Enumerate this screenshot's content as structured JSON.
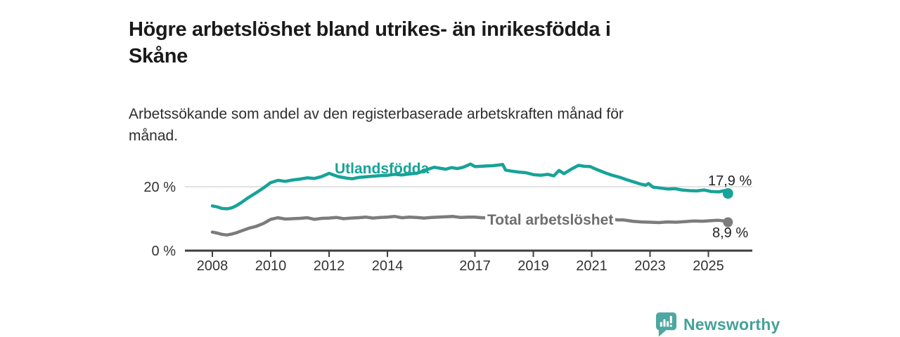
{
  "header": {
    "title": "Högre arbetslöshet bland utrikes- än inrikesfödda i\nSkåne",
    "subtitle": "Arbetssökande som andel av den registerbaserade arbetskraften månad för\nmånad."
  },
  "chart_data": {
    "type": "line",
    "title": "Högre arbetslöshet bland utrikes- än inrikesfödda i Skåne",
    "subtitle": "Arbetssökande som andel av den registerbaserade arbetskraften månad för månad.",
    "unit": "%",
    "x_axis": {
      "ticks": [
        2008,
        2010,
        2012,
        2014,
        2017,
        2019,
        2021,
        2023,
        2025
      ],
      "range_years": [
        2007.1,
        2026.5
      ]
    },
    "y_axis": {
      "ticks": [
        {
          "value": 0,
          "label": "0 %"
        },
        {
          "value": 20,
          "label": "20 %"
        }
      ],
      "range": [
        0,
        29
      ],
      "grid": true
    },
    "colors": {
      "axis": "#3e3e3e",
      "grid": "#d9d9d9",
      "tick_text": "#333333",
      "value_text": "#222222"
    },
    "series": [
      {
        "name": "Utlandsfödda",
        "color": "#17a398",
        "end_label": "17,9 %",
        "end_value": 17.9,
        "points": [
          [
            2008.0,
            14.0
          ],
          [
            2008.17,
            13.7
          ],
          [
            2008.33,
            13.2
          ],
          [
            2008.5,
            13.1
          ],
          [
            2008.67,
            13.4
          ],
          [
            2008.83,
            14.1
          ],
          [
            2009.0,
            15.1
          ],
          [
            2009.25,
            16.7
          ],
          [
            2009.5,
            18.1
          ],
          [
            2009.75,
            19.6
          ],
          [
            2010.0,
            21.3
          ],
          [
            2010.25,
            22.0
          ],
          [
            2010.5,
            21.7
          ],
          [
            2010.75,
            22.1
          ],
          [
            2011.0,
            22.4
          ],
          [
            2011.25,
            22.8
          ],
          [
            2011.5,
            22.6
          ],
          [
            2011.75,
            23.2
          ],
          [
            2012.0,
            24.2
          ],
          [
            2012.3,
            23.2
          ],
          [
            2012.6,
            22.7
          ],
          [
            2012.8,
            22.5
          ],
          [
            2013.0,
            22.9
          ],
          [
            2013.25,
            23.1
          ],
          [
            2013.5,
            23.3
          ],
          [
            2013.75,
            23.5
          ],
          [
            2014.0,
            23.6
          ],
          [
            2014.25,
            23.9
          ],
          [
            2014.5,
            23.7
          ],
          [
            2014.75,
            24.0
          ],
          [
            2015.0,
            24.2
          ],
          [
            2015.2,
            24.8
          ],
          [
            2015.4,
            25.5
          ],
          [
            2015.6,
            26.1
          ],
          [
            2015.8,
            25.8
          ],
          [
            2016.0,
            25.5
          ],
          [
            2016.2,
            26.0
          ],
          [
            2016.4,
            25.7
          ],
          [
            2016.6,
            26.1
          ],
          [
            2016.85,
            27.1
          ],
          [
            2017.0,
            26.3
          ],
          [
            2017.2,
            26.4
          ],
          [
            2017.4,
            26.5
          ],
          [
            2017.6,
            26.6
          ],
          [
            2017.8,
            26.8
          ],
          [
            2017.95,
            27.0
          ],
          [
            2018.05,
            25.2
          ],
          [
            2018.25,
            24.9
          ],
          [
            2018.5,
            24.6
          ],
          [
            2018.75,
            24.4
          ],
          [
            2019.0,
            23.8
          ],
          [
            2019.25,
            23.6
          ],
          [
            2019.5,
            23.9
          ],
          [
            2019.7,
            23.4
          ],
          [
            2019.88,
            25.1
          ],
          [
            2020.05,
            24.1
          ],
          [
            2020.3,
            25.5
          ],
          [
            2020.55,
            26.7
          ],
          [
            2020.75,
            26.4
          ],
          [
            2020.95,
            26.3
          ],
          [
            2021.2,
            25.3
          ],
          [
            2021.45,
            24.4
          ],
          [
            2021.7,
            23.6
          ],
          [
            2021.95,
            23.0
          ],
          [
            2022.2,
            22.2
          ],
          [
            2022.45,
            21.5
          ],
          [
            2022.65,
            20.9
          ],
          [
            2022.85,
            20.5
          ],
          [
            2022.95,
            21.0
          ],
          [
            2023.1,
            19.9
          ],
          [
            2023.35,
            19.6
          ],
          [
            2023.6,
            19.3
          ],
          [
            2023.85,
            19.4
          ],
          [
            2024.1,
            19.0
          ],
          [
            2024.35,
            18.8
          ],
          [
            2024.6,
            18.7
          ],
          [
            2024.85,
            19.0
          ],
          [
            2025.1,
            18.5
          ],
          [
            2025.35,
            18.4
          ],
          [
            2025.55,
            18.8
          ],
          [
            2025.67,
            17.9
          ]
        ]
      },
      {
        "name": "Total arbetslöshet",
        "color": "#7c7c7f",
        "label_color": "#6e6e71",
        "end_label": "8,9 %",
        "end_value": 8.9,
        "points": [
          [
            2008.0,
            5.8
          ],
          [
            2008.17,
            5.5
          ],
          [
            2008.33,
            5.1
          ],
          [
            2008.5,
            4.9
          ],
          [
            2008.67,
            5.2
          ],
          [
            2008.83,
            5.6
          ],
          [
            2009.0,
            6.2
          ],
          [
            2009.25,
            7.0
          ],
          [
            2009.5,
            7.6
          ],
          [
            2009.75,
            8.5
          ],
          [
            2010.0,
            9.8
          ],
          [
            2010.25,
            10.3
          ],
          [
            2010.5,
            9.9
          ],
          [
            2010.75,
            10.0
          ],
          [
            2011.0,
            10.1
          ],
          [
            2011.25,
            10.3
          ],
          [
            2011.5,
            9.8
          ],
          [
            2011.75,
            10.1
          ],
          [
            2012.0,
            10.2
          ],
          [
            2012.25,
            10.4
          ],
          [
            2012.5,
            10.0
          ],
          [
            2012.75,
            10.2
          ],
          [
            2013.0,
            10.3
          ],
          [
            2013.25,
            10.5
          ],
          [
            2013.5,
            10.2
          ],
          [
            2013.75,
            10.4
          ],
          [
            2014.0,
            10.5
          ],
          [
            2014.25,
            10.7
          ],
          [
            2014.5,
            10.3
          ],
          [
            2014.75,
            10.5
          ],
          [
            2015.0,
            10.4
          ],
          [
            2015.25,
            10.2
          ],
          [
            2015.5,
            10.4
          ],
          [
            2015.75,
            10.5
          ],
          [
            2016.0,
            10.6
          ],
          [
            2016.25,
            10.7
          ],
          [
            2016.5,
            10.4
          ],
          [
            2016.75,
            10.5
          ],
          [
            2017.0,
            10.5
          ],
          [
            2017.25,
            10.3
          ],
          [
            2017.5,
            10.2
          ],
          [
            2017.75,
            10.1
          ],
          [
            2018.0,
            10.0
          ],
          [
            2018.5,
            9.8
          ],
          [
            2019.0,
            9.7
          ],
          [
            2019.5,
            9.6
          ],
          [
            2019.9,
            9.5
          ],
          [
            2020.2,
            10.3
          ],
          [
            2020.5,
            11.0
          ],
          [
            2020.9,
            11.2
          ],
          [
            2021.2,
            10.7
          ],
          [
            2021.6,
            9.9
          ],
          [
            2021.9,
            9.6
          ],
          [
            2022.1,
            9.6
          ],
          [
            2022.4,
            9.2
          ],
          [
            2022.7,
            9.0
          ],
          [
            2023.0,
            8.9
          ],
          [
            2023.3,
            8.8
          ],
          [
            2023.6,
            9.0
          ],
          [
            2023.9,
            8.9
          ],
          [
            2024.2,
            9.1
          ],
          [
            2024.5,
            9.3
          ],
          [
            2024.8,
            9.2
          ],
          [
            2025.1,
            9.4
          ],
          [
            2025.35,
            9.5
          ],
          [
            2025.55,
            9.3
          ],
          [
            2025.67,
            8.9
          ]
        ]
      }
    ],
    "legend_position": "inline-on-line"
  },
  "branding": {
    "logo_text": "Newsworthy",
    "logo_color": "#44a19b",
    "logo_icon": "bar-chart-speech-bubble",
    "logo_icon_color": "#4ea7a0"
  }
}
